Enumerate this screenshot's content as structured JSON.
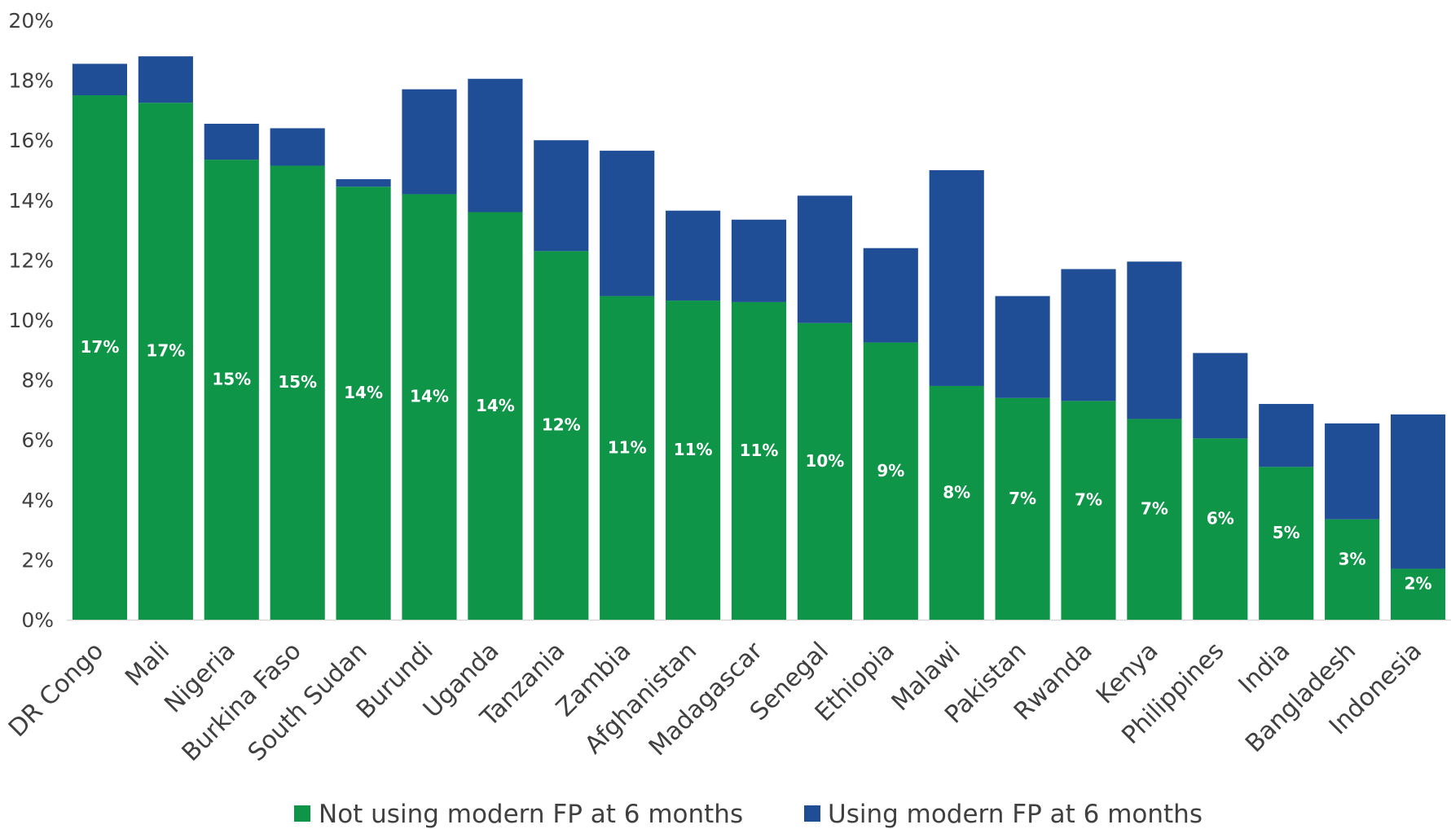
{
  "chart_data": {
    "type": "bar",
    "stacked": true,
    "categories": [
      "DR Congo",
      "Mali",
      "Nigeria",
      "Burkina Faso",
      "South Sudan",
      "Burundi",
      "Uganda",
      "Tanzania",
      "Zambia",
      "Afghanistan",
      "Madagascar",
      "Senegal",
      "Ethiopia",
      "Malawi",
      "Pakistan",
      "Rwanda",
      "Kenya",
      "Philippines",
      "India",
      "Bangladesh",
      "Indonesia"
    ],
    "series": [
      {
        "name": "Not using modern FP at 6 months",
        "color": "#0E9547",
        "values": [
          17.5,
          17.25,
          15.35,
          15.15,
          14.45,
          14.2,
          13.6,
          12.3,
          10.8,
          10.65,
          10.6,
          9.9,
          9.25,
          7.8,
          7.4,
          7.3,
          6.7,
          6.05,
          5.1,
          3.35,
          1.7
        ],
        "labels": [
          "17%",
          "17%",
          "15%",
          "15%",
          "14%",
          "14%",
          "14%",
          "12%",
          "11%",
          "11%",
          "11%",
          "10%",
          "9%",
          "8%",
          "7%",
          "7%",
          "7%",
          "6%",
          "5%",
          "3%",
          "2%"
        ]
      },
      {
        "name": "Using modern FP at 6 months",
        "color": "#1F4E96",
        "values": [
          1.05,
          1.55,
          1.2,
          1.25,
          0.25,
          3.5,
          4.45,
          3.7,
          4.85,
          3.0,
          2.75,
          4.25,
          3.15,
          7.2,
          3.4,
          4.4,
          5.25,
          2.85,
          2.1,
          3.2,
          5.15
        ]
      }
    ],
    "yaxis": {
      "min": 0,
      "max": 20,
      "ticks": [
        "0%",
        "2%",
        "4%",
        "6%",
        "8%",
        "10%",
        "12%",
        "14%",
        "16%",
        "18%",
        "20%"
      ]
    },
    "grid": false,
    "legend_position": "bottom"
  }
}
